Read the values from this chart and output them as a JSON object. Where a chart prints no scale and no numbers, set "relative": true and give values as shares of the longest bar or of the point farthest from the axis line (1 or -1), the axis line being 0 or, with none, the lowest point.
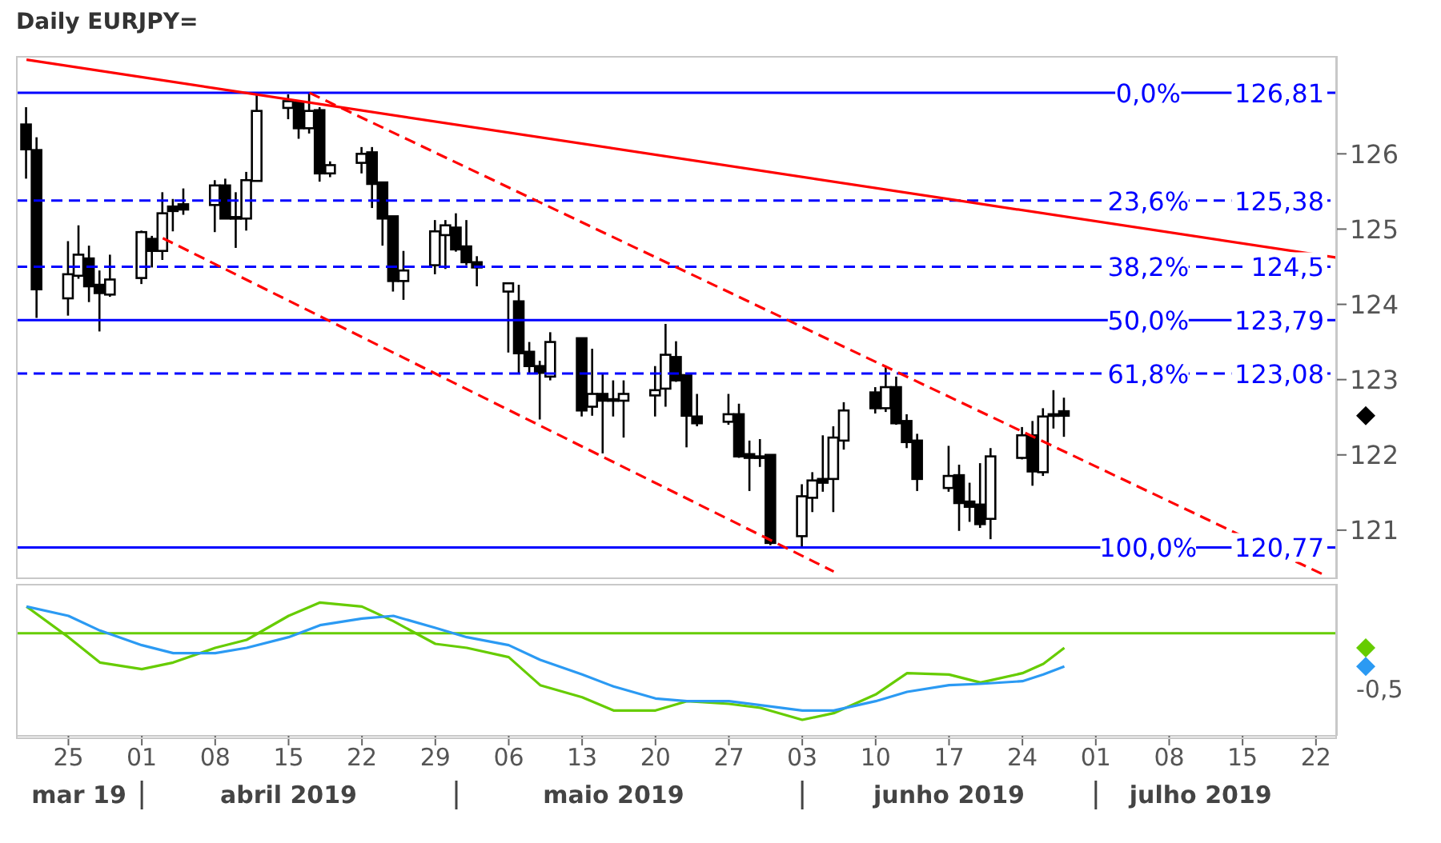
{
  "chart_data": [
    {
      "type": "candlestick",
      "title": "Daily EURJPY=",
      "color": "#000000",
      "tick_labels": "y",
      "xlim": [
        "2019-03-20",
        "2019-07-24"
      ],
      "ylim": [
        120.35,
        127.3
      ],
      "yticks": [
        121,
        122,
        123,
        124,
        125,
        126
      ],
      "x": [
        "2019-03-21",
        "2019-03-22",
        "2019-03-25",
        "2019-03-26",
        "2019-03-27",
        "2019-03-28",
        "2019-03-29",
        "2019-04-01",
        "2019-04-02",
        "2019-04-03",
        "2019-04-04",
        "2019-04-05",
        "2019-04-08",
        "2019-04-09",
        "2019-04-10",
        "2019-04-11",
        "2019-04-12",
        "2019-04-15",
        "2019-04-16",
        "2019-04-17",
        "2019-04-18",
        "2019-04-19",
        "2019-04-22",
        "2019-04-23",
        "2019-04-24",
        "2019-04-25",
        "2019-04-26",
        "2019-04-29",
        "2019-04-30",
        "2019-05-01",
        "2019-05-02",
        "2019-05-03",
        "2019-05-06",
        "2019-05-07",
        "2019-05-08",
        "2019-05-09",
        "2019-05-10",
        "2019-05-13",
        "2019-05-14",
        "2019-05-15",
        "2019-05-16",
        "2019-05-17",
        "2019-05-20",
        "2019-05-21",
        "2019-05-22",
        "2019-05-23",
        "2019-05-24",
        "2019-05-27",
        "2019-05-28",
        "2019-05-29",
        "2019-05-30",
        "2019-05-31",
        "2019-06-03",
        "2019-06-04",
        "2019-06-05",
        "2019-06-06",
        "2019-06-07",
        "2019-06-10",
        "2019-06-11",
        "2019-06-12",
        "2019-06-13",
        "2019-06-14",
        "2019-06-17",
        "2019-06-18",
        "2019-06-19",
        "2019-06-20",
        "2019-06-21",
        "2019-06-24",
        "2019-06-25",
        "2019-06-26",
        "2019-06-27",
        "2019-06-28"
      ],
      "ohlc": [
        [
          126.39,
          126.62,
          125.67,
          126.06
        ],
        [
          126.05,
          126.22,
          123.82,
          124.2
        ],
        [
          124.08,
          124.84,
          123.85,
          124.4
        ],
        [
          124.38,
          125.05,
          124.34,
          124.66
        ],
        [
          124.61,
          124.78,
          124.03,
          124.24
        ],
        [
          124.26,
          124.45,
          123.64,
          124.15
        ],
        [
          124.13,
          124.66,
          124.1,
          124.33
        ],
        [
          124.35,
          124.98,
          124.27,
          124.96
        ],
        [
          124.87,
          124.91,
          124.49,
          124.71
        ],
        [
          124.71,
          125.49,
          124.59,
          125.21
        ],
        [
          125.3,
          125.4,
          124.97,
          125.24
        ],
        [
          125.33,
          125.54,
          125.19,
          125.26
        ],
        [
          125.32,
          125.65,
          124.96,
          125.58
        ],
        [
          125.58,
          125.67,
          125.14,
          125.14
        ],
        [
          125.16,
          125.49,
          124.75,
          125.15
        ],
        [
          125.14,
          125.76,
          124.98,
          125.65
        ],
        [
          125.64,
          126.78,
          125.64,
          126.57
        ],
        [
          126.61,
          126.79,
          126.46,
          126.7
        ],
        [
          126.68,
          126.71,
          126.2,
          126.34
        ],
        [
          126.34,
          126.81,
          126.27,
          126.57
        ],
        [
          126.58,
          126.62,
          125.63,
          125.74
        ],
        [
          125.74,
          125.9,
          125.69,
          125.85
        ],
        [
          125.88,
          126.09,
          125.74,
          126.0
        ],
        [
          126.02,
          126.09,
          125.28,
          125.6
        ],
        [
          125.62,
          125.62,
          124.78,
          125.14
        ],
        [
          125.17,
          125.17,
          124.17,
          124.31
        ],
        [
          124.31,
          124.71,
          124.06,
          124.45
        ],
        [
          124.52,
          125.12,
          124.4,
          124.97
        ],
        [
          124.92,
          125.12,
          124.47,
          125.05
        ],
        [
          125.02,
          125.21,
          124.7,
          124.73
        ],
        [
          124.77,
          125.12,
          124.52,
          124.56
        ],
        [
          124.56,
          124.64,
          124.24,
          124.49
        ],
        [
          124.17,
          124.29,
          123.36,
          124.28
        ],
        [
          124.04,
          124.26,
          123.09,
          123.35
        ],
        [
          123.37,
          123.5,
          123.09,
          123.18
        ],
        [
          123.18,
          123.25,
          122.47,
          123.09
        ],
        [
          123.04,
          123.63,
          122.99,
          123.5
        ],
        [
          123.55,
          123.55,
          122.51,
          122.59
        ],
        [
          122.64,
          123.41,
          122.52,
          122.81
        ],
        [
          122.81,
          123.09,
          122.02,
          122.72
        ],
        [
          122.74,
          122.99,
          122.51,
          122.73
        ],
        [
          122.72,
          122.99,
          122.23,
          122.81
        ],
        [
          122.79,
          123.18,
          122.51,
          122.86
        ],
        [
          122.88,
          123.74,
          122.64,
          123.33
        ],
        [
          123.3,
          123.51,
          122.97,
          122.99
        ],
        [
          123.06,
          123.06,
          122.1,
          122.52
        ],
        [
          122.51,
          122.81,
          122.38,
          122.42
        ],
        [
          122.44,
          122.81,
          122.4,
          122.54
        ],
        [
          122.54,
          122.68,
          121.96,
          121.98
        ],
        [
          122.01,
          122.19,
          121.52,
          121.96
        ],
        [
          121.98,
          122.21,
          121.84,
          121.97
        ],
        [
          122.0,
          122.0,
          120.8,
          120.83
        ],
        [
          120.92,
          121.61,
          120.77,
          121.45
        ],
        [
          121.43,
          121.77,
          121.24,
          121.66
        ],
        [
          121.68,
          122.26,
          121.51,
          121.63
        ],
        [
          121.68,
          122.38,
          121.24,
          122.23
        ],
        [
          122.19,
          122.7,
          122.07,
          122.59
        ],
        [
          122.83,
          122.9,
          122.55,
          122.62
        ],
        [
          122.62,
          123.18,
          122.57,
          122.9
        ],
        [
          122.9,
          123.04,
          122.4,
          122.42
        ],
        [
          122.45,
          122.54,
          122.09,
          122.17
        ],
        [
          122.19,
          122.28,
          121.52,
          121.68
        ],
        [
          121.56,
          122.12,
          121.51,
          121.72
        ],
        [
          121.73,
          121.87,
          120.99,
          121.36
        ],
        [
          121.38,
          121.63,
          121.11,
          121.31
        ],
        [
          121.34,
          121.89,
          121.03,
          121.08
        ],
        [
          121.15,
          122.09,
          120.88,
          121.98
        ],
        [
          121.96,
          122.37,
          121.94,
          122.26
        ],
        [
          122.26,
          122.45,
          121.59,
          121.78
        ],
        [
          121.77,
          122.62,
          121.72,
          122.51
        ],
        [
          122.53,
          122.86,
          122.35,
          122.54
        ],
        [
          122.58,
          122.76,
          122.24,
          122.52
        ]
      ],
      "series": [
        {
          "type": "line",
          "color": "#ff0000",
          "line_style": "solid",
          "x": [
            "2019-03-21",
            "2019-07-24"
          ],
          "values": [
            127.25,
            124.62
          ]
        },
        {
          "type": "line",
          "color": "#ff0000",
          "line_style": "dashed",
          "x": [
            "2019-04-17",
            "2019-07-23"
          ],
          "values": [
            126.81,
            120.39
          ]
        },
        {
          "type": "line",
          "color": "#ff0000",
          "line_style": "dashed",
          "x": [
            "2019-04-03",
            "2019-06-06"
          ],
          "values": [
            124.88,
            120.45
          ]
        }
      ],
      "ref_lines": [
        {
          "axis": "y",
          "value": 126.81,
          "label": "126,81",
          "color": "#0000ff",
          "line_style": "solid"
        },
        {
          "axis": "y",
          "value": 125.38,
          "label": "125,38",
          "color": "#0000ff",
          "line_style": "dashed"
        },
        {
          "axis": "y",
          "value": 124.5,
          "label": "124,5",
          "color": "#0000ff",
          "line_style": "dashed"
        },
        {
          "axis": "y",
          "value": 123.79,
          "label": "123,79",
          "color": "#0000ff",
          "line_style": "solid"
        },
        {
          "axis": "y",
          "value": 123.08,
          "label": "123,08",
          "color": "#0000ff",
          "line_style": "dashed"
        },
        {
          "axis": "y",
          "value": 120.77,
          "label": "120,77",
          "color": "#0000ff",
          "line_style": "solid"
        }
      ],
      "annotations": [
        {
          "text": "0,0%",
          "x": "2019-07-06",
          "y": 126.81
        },
        {
          "text": "23,6%",
          "x": "2019-07-06",
          "y": 125.38
        },
        {
          "text": "38,2%",
          "x": "2019-07-06",
          "y": 124.5
        },
        {
          "text": "50,0%",
          "x": "2019-07-06",
          "y": 123.79
        },
        {
          "text": "61,8%",
          "x": "2019-07-06",
          "y": 123.08
        },
        {
          "text": "100,0%",
          "x": "2019-07-06",
          "y": 120.77
        }
      ]
    },
    {
      "type": "line",
      "relative": true,
      "tick_labels": "x",
      "xlim": [
        "2019-03-20",
        "2019-07-24"
      ],
      "xticks": [
        {
          "value": "2019-03-25",
          "label": "25"
        },
        {
          "value": "2019-04-01",
          "label": "01"
        },
        {
          "value": "2019-04-08",
          "label": "08"
        },
        {
          "value": "2019-04-15",
          "label": "15"
        },
        {
          "value": "2019-04-22",
          "label": "22"
        },
        {
          "value": "2019-04-29",
          "label": "29"
        },
        {
          "value": "2019-05-06",
          "label": "06"
        },
        {
          "value": "2019-05-13",
          "label": "13"
        },
        {
          "value": "2019-05-20",
          "label": "20"
        },
        {
          "value": "2019-05-27",
          "label": "27"
        },
        {
          "value": "2019-06-03",
          "label": "03"
        },
        {
          "value": "2019-06-10",
          "label": "10"
        },
        {
          "value": "2019-06-17",
          "label": "17"
        },
        {
          "value": "2019-06-24",
          "label": "24"
        },
        {
          "value": "2019-07-01",
          "label": "01"
        },
        {
          "value": "2019-07-08",
          "label": "08"
        },
        {
          "value": "2019-07-15",
          "label": "15"
        },
        {
          "value": "2019-07-22",
          "label": "22"
        }
      ],
      "x2lim": [
        "2019-03-20",
        "2019-07-24"
      ],
      "x2ticks": [
        {
          "value": "2019-03-26",
          "label": "mar 19"
        },
        {
          "value": "2019-04-15",
          "label": "abril 2019"
        },
        {
          "value": "2019-05-16",
          "label": "maio 2019"
        },
        {
          "value": "2019-06-17",
          "label": "junho 2019"
        },
        {
          "value": "2019-07-11",
          "label": "julho 2019"
        }
      ],
      "x": [
        "2019-03-21",
        "2019-03-25",
        "2019-03-28",
        "2019-04-01",
        "2019-04-04",
        "2019-04-08",
        "2019-04-11",
        "2019-04-15",
        "2019-04-18",
        "2019-04-22",
        "2019-04-25",
        "2019-04-29",
        "2019-05-02",
        "2019-05-06",
        "2019-05-09",
        "2019-05-13",
        "2019-05-16",
        "2019-05-20",
        "2019-05-23",
        "2019-05-27",
        "2019-05-30",
        "2019-06-03",
        "2019-06-06",
        "2019-06-10",
        "2019-06-13",
        "2019-06-17",
        "2019-06-20",
        "2019-06-24",
        "2019-06-26",
        "2019-06-28"
      ],
      "series": [
        {
          "color": "#66cc00",
          "values": [
            0.97,
            0.74,
            0.55,
            0.5,
            0.55,
            0.66,
            0.72,
            0.9,
            1,
            0.97,
            0.86,
            0.69,
            0.66,
            0.59,
            0.38,
            0.29,
            0.19,
            0.19,
            0.26,
            0.24,
            0.21,
            0.12,
            0.17,
            0.31,
            0.47,
            0.46,
            0.4,
            0.47,
            0.54,
            0.66
          ]
        },
        {
          "color": "#2b9af3",
          "values": [
            0.97,
            0.9,
            0.79,
            0.68,
            0.62,
            0.62,
            0.66,
            0.74,
            0.83,
            0.88,
            0.9,
            0.81,
            0.74,
            0.68,
            0.57,
            0.46,
            0.37,
            0.28,
            0.26,
            0.26,
            0.23,
            0.19,
            0.19,
            0.26,
            0.33,
            0.38,
            0.39,
            0.41,
            0.46,
            0.52
          ]
        }
      ],
      "ref_lines": [
        {
          "axis": "y",
          "value": 0.77,
          "color": "#66cc00",
          "line_style": "solid"
        }
      ],
      "annotations": [
        "-0,5"
      ]
    }
  ]
}
